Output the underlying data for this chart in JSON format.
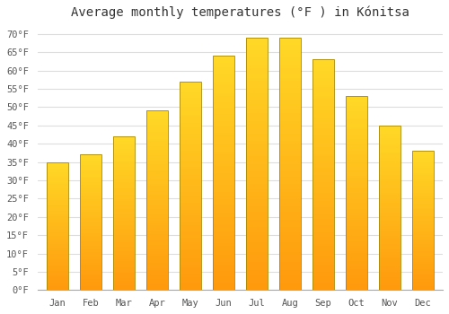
{
  "title": "Average monthly temperatures (°F ) in Kónitsa",
  "months": [
    "Jan",
    "Feb",
    "Mar",
    "Apr",
    "May",
    "Jun",
    "Jul",
    "Aug",
    "Sep",
    "Oct",
    "Nov",
    "Dec"
  ],
  "values": [
    35,
    37,
    42,
    49,
    57,
    64,
    69,
    69,
    63,
    53,
    45,
    38
  ],
  "bar_color_main": "#FFAA00",
  "bar_color_top": "#FFD050",
  "bar_color_bottom": "#FF9500",
  "bar_edge_color": "#B8860B",
  "ylim": [
    0,
    72
  ],
  "yticks": [
    0,
    5,
    10,
    15,
    20,
    25,
    30,
    35,
    40,
    45,
    50,
    55,
    60,
    65,
    70
  ],
  "background_color": "#FFFFFF",
  "grid_color": "#DDDDDD",
  "title_fontsize": 10,
  "tick_fontsize": 7.5,
  "figsize": [
    5.0,
    3.5
  ],
  "dpi": 100
}
